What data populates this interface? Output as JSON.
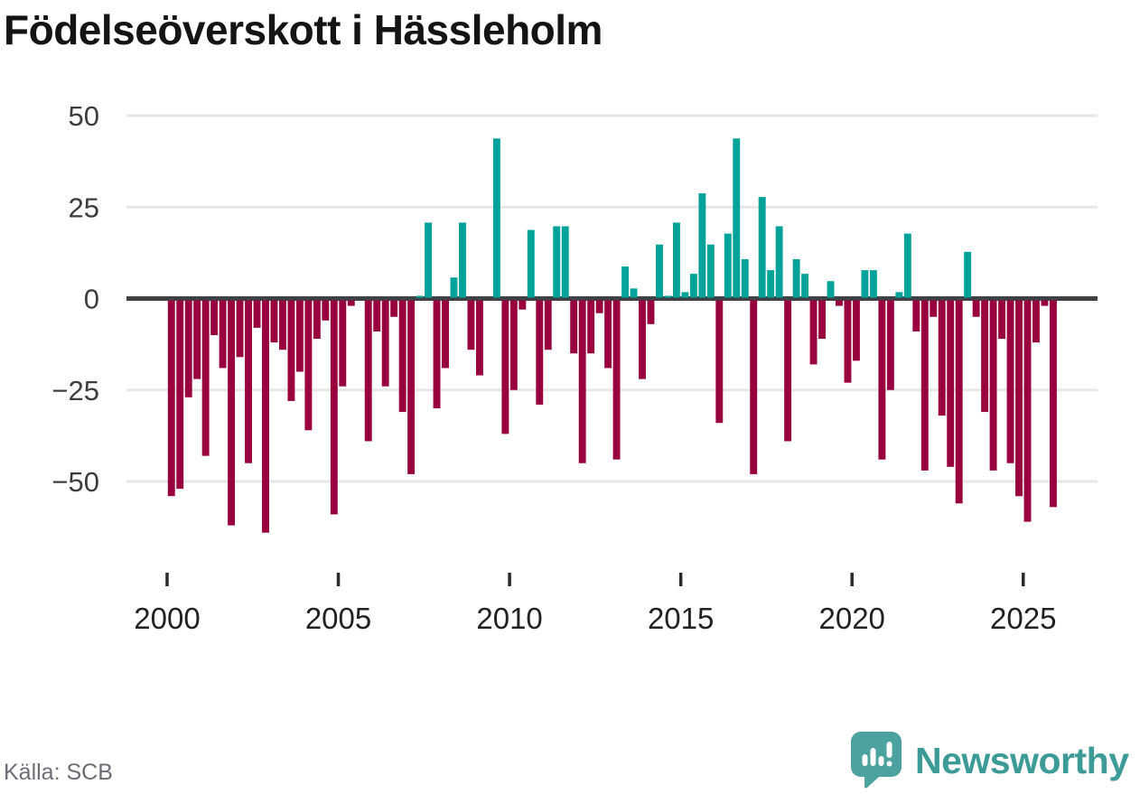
{
  "title": "Födelseöverskott i Hässleholm",
  "source": "Källa: SCB",
  "branding": {
    "name": "Newsworthy",
    "color": "#3c9b97",
    "icon_color": "#4ba29e"
  },
  "chart_data": {
    "type": "bar",
    "title": "Födelseöverskott i Hässleholm",
    "xlabel": "",
    "ylabel": "",
    "ylim": [
      -65,
      50
    ],
    "yticks": [
      50,
      25,
      0,
      -25,
      -50
    ],
    "xtick_labels": [
      "2000",
      "2005",
      "2010",
      "2015",
      "2020",
      "2025"
    ],
    "xtick_years": [
      2000,
      2005,
      2010,
      2015,
      2020,
      2025
    ],
    "grid": true,
    "positive_color": "#00a29a",
    "negative_color": "#99003e",
    "categories": [
      "2000 Q1",
      "2000 Q2",
      "2000 Q3",
      "2000 Q4",
      "2001 Q1",
      "2001 Q2",
      "2001 Q3",
      "2001 Q4",
      "2002 Q1",
      "2002 Q2",
      "2002 Q3",
      "2002 Q4",
      "2003 Q1",
      "2003 Q2",
      "2003 Q3",
      "2003 Q4",
      "2004 Q1",
      "2004 Q2",
      "2004 Q3",
      "2004 Q4",
      "2005 Q1",
      "2005 Q2",
      "2005 Q3",
      "2005 Q4",
      "2006 Q1",
      "2006 Q2",
      "2006 Q3",
      "2006 Q4",
      "2007 Q1",
      "2007 Q2",
      "2007 Q3",
      "2007 Q4",
      "2008 Q1",
      "2008 Q2",
      "2008 Q3",
      "2008 Q4",
      "2009 Q1",
      "2009 Q2",
      "2009 Q3",
      "2009 Q4",
      "2010 Q1",
      "2010 Q2",
      "2010 Q3",
      "2010 Q4",
      "2011 Q1",
      "2011 Q2",
      "2011 Q3",
      "2011 Q4",
      "2012 Q1",
      "2012 Q2",
      "2012 Q3",
      "2012 Q4",
      "2013 Q1",
      "2013 Q2",
      "2013 Q3",
      "2013 Q4",
      "2014 Q1",
      "2014 Q2",
      "2014 Q3",
      "2014 Q4",
      "2015 Q1",
      "2015 Q2",
      "2015 Q3",
      "2015 Q4",
      "2016 Q1",
      "2016 Q2",
      "2016 Q3",
      "2016 Q4",
      "2017 Q1",
      "2017 Q2",
      "2017 Q3",
      "2017 Q4",
      "2018 Q1",
      "2018 Q2",
      "2018 Q3",
      "2018 Q4",
      "2019 Q1",
      "2019 Q2",
      "2019 Q3",
      "2019 Q4",
      "2020 Q1",
      "2020 Q2",
      "2020 Q3",
      "2020 Q4",
      "2021 Q1",
      "2021 Q2",
      "2021 Q3",
      "2021 Q4",
      "2022 Q1",
      "2022 Q2",
      "2022 Q3",
      "2022 Q4",
      "2023 Q1",
      "2023 Q2",
      "2023 Q3",
      "2023 Q4",
      "2024 Q1",
      "2024 Q2",
      "2024 Q3",
      "2024 Q4",
      "2025 Q1",
      "2025 Q2",
      "2025 Q3",
      "2025 Q4"
    ],
    "values": [
      -54,
      -52,
      -27,
      -22,
      -43,
      -10,
      -19,
      -62,
      -16,
      -45,
      -8,
      -64,
      -12,
      -14,
      -28,
      -20,
      -36,
      -11,
      -6,
      -59,
      -24,
      -2,
      0,
      -39,
      -9,
      -24,
      -5,
      -31,
      -48,
      1,
      21,
      -30,
      -19,
      6,
      21,
      -14,
      -21,
      0,
      44,
      -37,
      -25,
      -3,
      19,
      -29,
      -14,
      20,
      20,
      -15,
      -45,
      -15,
      -4,
      -19,
      -44,
      9,
      3,
      -22,
      -7,
      15,
      1,
      21,
      2,
      7,
      29,
      15,
      -34,
      18,
      44,
      11,
      -48,
      28,
      8,
      20,
      -39,
      11,
      7,
      -18,
      -11,
      5,
      -2,
      -23,
      -17,
      8,
      8,
      -44,
      -25,
      2,
      18,
      -9,
      -47,
      -5,
      -32,
      -46,
      -56,
      13,
      -5,
      -31,
      -47,
      -11,
      -45,
      -54,
      -61,
      -12,
      -2,
      -57
    ]
  }
}
